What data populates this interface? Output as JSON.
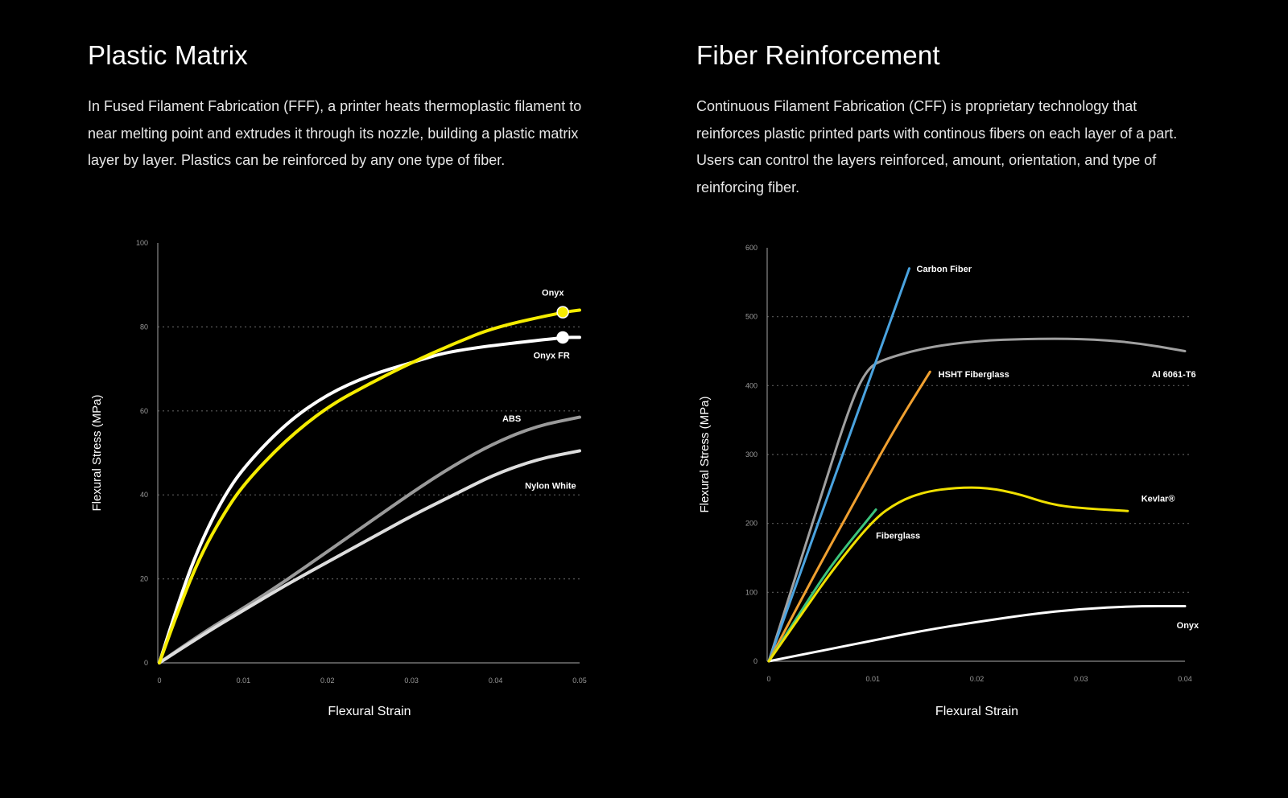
{
  "left": {
    "title": "Plastic Matrix",
    "body": "In Fused Filament Fabrication (FFF), a printer heats thermoplastic filament to near melting point and extrudes it through its nozzle, building a plastic matrix layer by layer. Plastics can be reinforced by any one type of fiber."
  },
  "right": {
    "title": "Fiber Reinforcement",
    "body": "Continuous Filament Fabrication (CFF) is proprietary technology that reinforces plastic printed parts with continous fibers on each layer of a part. Users can control the layers reinforced, amount, orientation, and type of reinforcing fiber."
  },
  "chart_data": [
    {
      "type": "line",
      "xlabel": "Flexural Strain",
      "ylabel": "Flexural Stress (MPa)",
      "xlim": [
        0,
        0.05
      ],
      "ylim": [
        0,
        100
      ],
      "xticks": [
        "0",
        "0.01",
        "0.02",
        "0.03",
        "0.04",
        "0.05"
      ],
      "xtick_values": [
        0,
        0.01,
        0.02,
        0.03,
        0.04,
        0.05
      ],
      "yticks": [
        "0",
        "20",
        "40",
        "60",
        "80",
        "100"
      ],
      "ytick_values": [
        0,
        20,
        40,
        60,
        80,
        100
      ],
      "grid": "horizontal dotted at 20, 40, 60, 80",
      "series": [
        {
          "name": "ABS",
          "color": "#9a9a9a",
          "x": [
            0,
            0.005,
            0.01,
            0.015,
            0.02,
            0.025,
            0.03,
            0.035,
            0.04,
            0.045,
            0.05
          ],
          "y": [
            0,
            7,
            13,
            19.5,
            26.5,
            33.5,
            40.5,
            47,
            52.5,
            56.5,
            58.5
          ]
        },
        {
          "name": "Nylon White",
          "color": "#dddddd",
          "x": [
            0,
            0.005,
            0.01,
            0.015,
            0.02,
            0.025,
            0.03,
            0.035,
            0.04,
            0.045,
            0.05
          ],
          "y": [
            0,
            6.5,
            12.5,
            18.5,
            24,
            29.5,
            35,
            40,
            45,
            48.5,
            50.5
          ]
        },
        {
          "name": "Onyx FR",
          "color": "#ffffff",
          "marker_index": 10,
          "x": [
            0,
            0.0025,
            0.005,
            0.0075,
            0.01,
            0.015,
            0.02,
            0.025,
            0.03,
            0.035,
            0.048,
            0.05
          ],
          "y": [
            0,
            16,
            29,
            39,
            46.5,
            57,
            64,
            68.5,
            71.5,
            74.5,
            77.5,
            77.5
          ]
        },
        {
          "name": "Onyx",
          "color": "#f5ec00",
          "marker_index": 11,
          "x": [
            0,
            0.0025,
            0.005,
            0.0075,
            0.01,
            0.015,
            0.02,
            0.025,
            0.03,
            0.035,
            0.04,
            0.048,
            0.05
          ],
          "y": [
            0,
            14,
            26,
            35,
            42.5,
            53,
            61,
            66.5,
            71.5,
            76,
            80,
            83.5,
            84
          ]
        }
      ],
      "annotations": [
        {
          "text": "Onyx",
          "x": 0.0455,
          "y": 87.5
        },
        {
          "text": "Onyx FR",
          "x": 0.0445,
          "y": 72.5
        },
        {
          "text": "ABS",
          "x": 0.0408,
          "y": 57.5
        },
        {
          "text": "Nylon White",
          "x": 0.0435,
          "y": 41.5
        }
      ]
    },
    {
      "type": "line",
      "xlabel": "Flexural Strain",
      "ylabel": "Flexural Stress (MPa)",
      "xlim": [
        0,
        0.04
      ],
      "ylim": [
        0,
        600
      ],
      "xticks": [
        "0",
        "0.01",
        "0.02",
        "0.03",
        "0.04"
      ],
      "xtick_values": [
        0,
        0.01,
        0.02,
        0.03,
        0.04
      ],
      "yticks": [
        "0",
        "100",
        "200",
        "300",
        "400",
        "500",
        "600"
      ],
      "ytick_values": [
        0,
        100,
        200,
        300,
        400,
        500,
        600
      ],
      "grid": "horizontal dotted at 100, 200, 300, 400, 500",
      "series": [
        {
          "name": "Onyx",
          "color": "#ffffff",
          "x": [
            0,
            0.005,
            0.01,
            0.015,
            0.02,
            0.025,
            0.03,
            0.035,
            0.04
          ],
          "y": [
            0,
            15,
            30,
            45,
            57,
            68,
            76,
            80,
            80
          ]
        },
        {
          "name": "Al 6061-T6",
          "color": "#a0a0a0",
          "x": [
            0,
            0.005,
            0.008,
            0.0095,
            0.011,
            0.015,
            0.02,
            0.025,
            0.03,
            0.035,
            0.04
          ],
          "y": [
            0,
            240,
            380,
            425,
            438,
            455,
            465,
            468,
            468,
            463,
            450
          ]
        },
        {
          "name": "Carbon Fiber",
          "color": "#4aa3df",
          "x": [
            0,
            0.0135
          ],
          "y": [
            0,
            570
          ]
        },
        {
          "name": "HSHT Fiberglass",
          "color": "#f0a030",
          "x": [
            0,
            0.004,
            0.008,
            0.012,
            0.0155
          ],
          "y": [
            0,
            115,
            225,
            335,
            420
          ]
        },
        {
          "name": "Fiberglass",
          "color": "#3cc47c",
          "x": [
            0,
            0.003,
            0.006,
            0.0103
          ],
          "y": [
            0,
            70,
            140,
            220
          ]
        },
        {
          "name": "Kevlar®",
          "color": "#f0e000",
          "x": [
            0,
            0.003,
            0.006,
            0.01,
            0.0125,
            0.015,
            0.018,
            0.021,
            0.024,
            0.027,
            0.03,
            0.0345
          ],
          "y": [
            0,
            65,
            130,
            205,
            232,
            246,
            252,
            252,
            243,
            228,
            222,
            218
          ]
        }
      ],
      "annotations": [
        {
          "text": "Carbon Fiber",
          "x": 0.0142,
          "y": 565
        },
        {
          "text": "HSHT Fiberglass",
          "x": 0.0163,
          "y": 412
        },
        {
          "text": "Al 6061-T6",
          "x": 0.0368,
          "y": 412
        },
        {
          "text": "Kevlar®",
          "x": 0.0358,
          "y": 232
        },
        {
          "text": "Fiberglass",
          "x": 0.0103,
          "y": 178
        },
        {
          "text": "Onyx",
          "x": 0.0392,
          "y": 48
        }
      ]
    }
  ]
}
